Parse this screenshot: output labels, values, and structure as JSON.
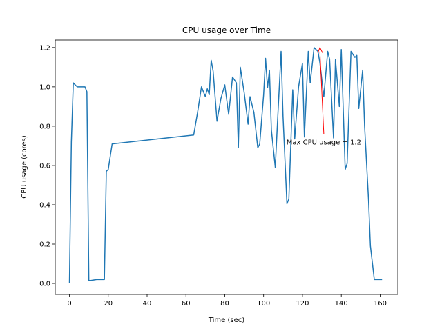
{
  "chart_data": {
    "type": "line",
    "title": "CPU usage over Time",
    "xlabel": "Time (sec)",
    "ylabel": "CPU usage (cores)",
    "xlim": [
      -7.3,
      169.1
    ],
    "ylim": [
      -0.056,
      1.238
    ],
    "xticks": [
      "0",
      "20",
      "40",
      "60",
      "80",
      "100",
      "120",
      "140",
      "160"
    ],
    "yticks": [
      "0.0",
      "0.2",
      "0.4",
      "0.6",
      "0.8",
      "1.0",
      "1.2"
    ],
    "grid": false,
    "legend": "none",
    "line_color": "#1f77b4",
    "annotation": {
      "text": "Max CPU usage = 1.2",
      "color": "#ff0000",
      "xy": [
        129,
        1.2
      ],
      "xytext": [
        131,
        0.76
      ]
    },
    "series": [
      {
        "x": [
          0,
          1,
          2,
          3,
          4,
          5,
          8,
          9,
          10,
          11,
          14,
          16,
          18,
          19,
          20,
          22,
          64,
          66,
          68,
          70,
          71,
          72,
          73,
          74,
          76,
          78,
          80,
          82,
          84,
          86,
          87,
          88,
          90,
          92,
          93,
          95,
          97,
          98,
          100,
          101,
          102,
          103,
          104,
          106,
          107,
          109,
          110,
          112,
          113,
          115,
          116,
          118,
          120,
          121,
          123,
          124,
          126,
          128,
          129,
          131,
          133,
          134,
          136,
          137,
          139,
          140,
          142,
          143,
          145,
          147,
          148,
          149,
          151,
          152,
          154,
          155,
          157,
          159,
          161
        ],
        "y": [
          0.0,
          0.72,
          1.02,
          1.01,
          1.0,
          1.0,
          1.0,
          0.975,
          0.015,
          0.015,
          0.02,
          0.02,
          0.02,
          0.57,
          0.58,
          0.71,
          0.755,
          0.87,
          1.0,
          0.95,
          0.99,
          0.96,
          1.135,
          1.08,
          0.825,
          0.94,
          1.01,
          0.86,
          1.05,
          1.02,
          0.69,
          1.1,
          0.97,
          0.81,
          0.95,
          0.87,
          0.69,
          0.71,
          0.96,
          1.145,
          0.995,
          1.085,
          0.78,
          0.59,
          0.79,
          1.18,
          0.85,
          0.405,
          0.43,
          0.985,
          0.735,
          1.0,
          1.12,
          0.745,
          1.18,
          1.02,
          1.2,
          1.18,
          1.12,
          0.95,
          1.18,
          1.14,
          0.74,
          1.14,
          0.9,
          1.19,
          0.58,
          0.61,
          1.18,
          1.15,
          1.16,
          0.89,
          1.085,
          0.8,
          0.43,
          0.19,
          0.02,
          0.02,
          0.02
        ]
      }
    ]
  }
}
